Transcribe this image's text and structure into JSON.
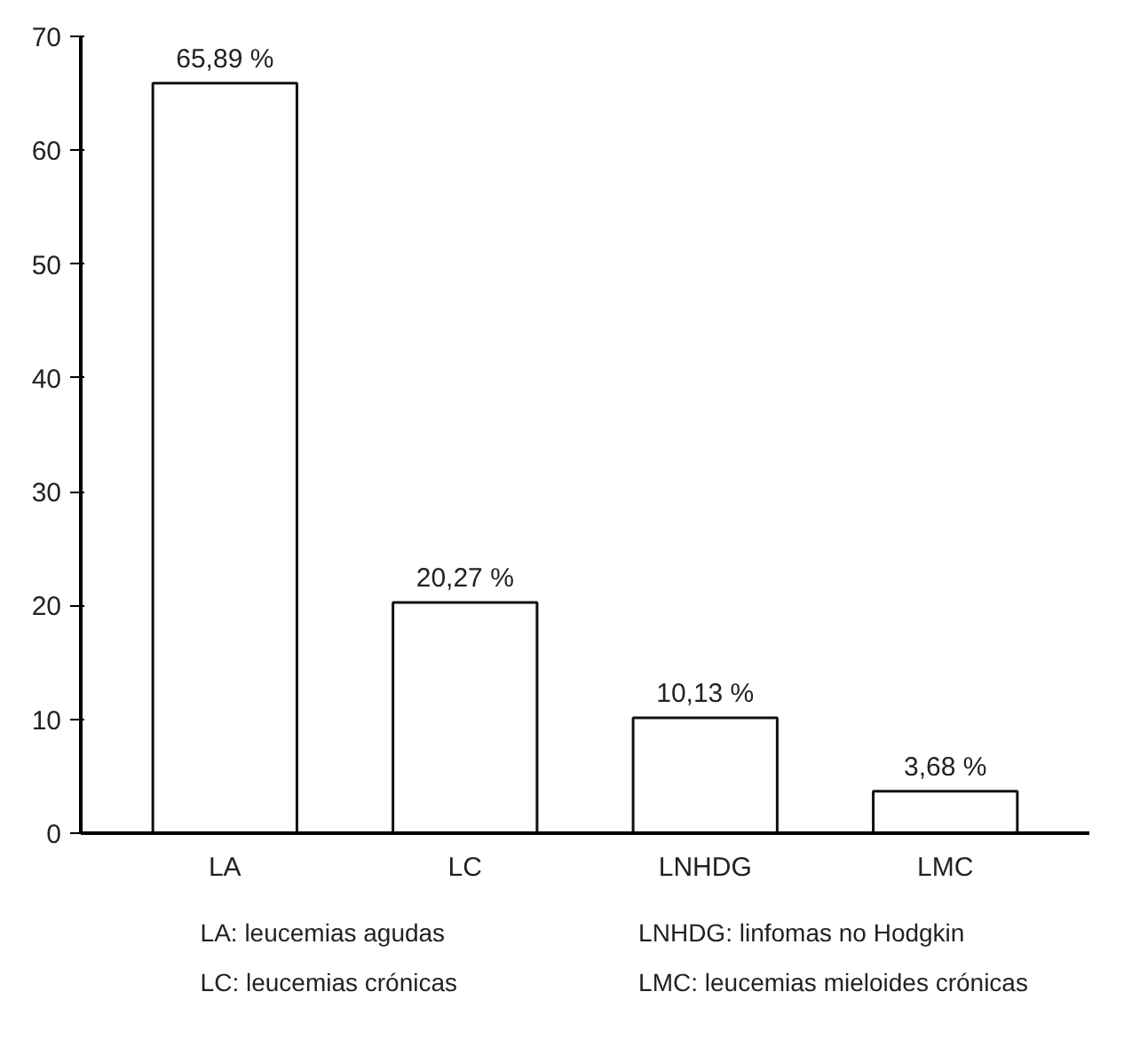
{
  "chart_data": {
    "type": "bar",
    "categories": [
      "LA",
      "LC",
      "LNHDG",
      "LMC"
    ],
    "values": [
      65.89,
      20.27,
      10.13,
      3.68
    ],
    "value_labels": [
      "65,89 %",
      "20,27 %",
      "10,13 %",
      "3,68 %"
    ],
    "color": "#ffffff",
    "ylim": [
      0,
      70
    ],
    "yticks": [
      0,
      10,
      20,
      30,
      40,
      50,
      60,
      70
    ],
    "grid": false,
    "annotations": [
      "LA: leucemias agudas",
      "LNHDG: linfomas no Hodgkin",
      "LC: leucemias crónicas",
      "LMC: leucemias mieloides crónicas"
    ]
  }
}
